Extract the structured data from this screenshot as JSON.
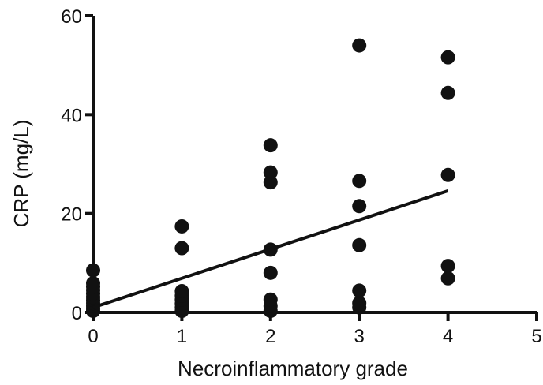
{
  "chart_data": {
    "type": "scatter",
    "title": "",
    "xlabel": "Necroinflammatory grade",
    "ylabel": "CRP (mg/L)",
    "xlim": [
      0,
      5
    ],
    "ylim": [
      0,
      60
    ],
    "x_ticks": [
      0,
      1,
      2,
      3,
      4,
      5
    ],
    "y_ticks": [
      0,
      20,
      40,
      60
    ],
    "grid": false,
    "legend": "none",
    "point_color": "#111111",
    "series": [
      {
        "points": [
          {
            "x": 0,
            "y": 0.3
          },
          {
            "x": 0,
            "y": 0.8
          },
          {
            "x": 0,
            "y": 1.3
          },
          {
            "x": 0,
            "y": 1.9
          },
          {
            "x": 0,
            "y": 2.5
          },
          {
            "x": 0,
            "y": 3.1
          },
          {
            "x": 0,
            "y": 3.8
          },
          {
            "x": 0,
            "y": 4.5
          },
          {
            "x": 0,
            "y": 5.2
          },
          {
            "x": 0,
            "y": 5.9
          },
          {
            "x": 0,
            "y": 8.5
          },
          {
            "x": 1,
            "y": 0.3
          },
          {
            "x": 1,
            "y": 1.0
          },
          {
            "x": 1,
            "y": 1.8
          },
          {
            "x": 1,
            "y": 2.6
          },
          {
            "x": 1,
            "y": 3.4
          },
          {
            "x": 1,
            "y": 4.3
          },
          {
            "x": 1,
            "y": 13.0
          },
          {
            "x": 1,
            "y": 17.4
          },
          {
            "x": 2,
            "y": 0.3
          },
          {
            "x": 2,
            "y": 1.3
          },
          {
            "x": 2,
            "y": 2.6
          },
          {
            "x": 2,
            "y": 8.0
          },
          {
            "x": 2,
            "y": 12.7
          },
          {
            "x": 2,
            "y": 26.3
          },
          {
            "x": 2,
            "y": 28.3
          },
          {
            "x": 2,
            "y": 33.8
          },
          {
            "x": 3,
            "y": 1.0
          },
          {
            "x": 3,
            "y": 1.9
          },
          {
            "x": 3,
            "y": 4.4
          },
          {
            "x": 3,
            "y": 13.6
          },
          {
            "x": 3,
            "y": 21.5
          },
          {
            "x": 3,
            "y": 26.6
          },
          {
            "x": 3,
            "y": 54.0
          },
          {
            "x": 4,
            "y": 6.9
          },
          {
            "x": 4,
            "y": 9.4
          },
          {
            "x": 4,
            "y": 27.8
          },
          {
            "x": 4,
            "y": 44.4
          },
          {
            "x": 4,
            "y": 51.6
          }
        ]
      }
    ],
    "regression_line": {
      "x": [
        0,
        4
      ],
      "y": [
        1.0,
        24.6
      ],
      "color": "#111111"
    }
  }
}
